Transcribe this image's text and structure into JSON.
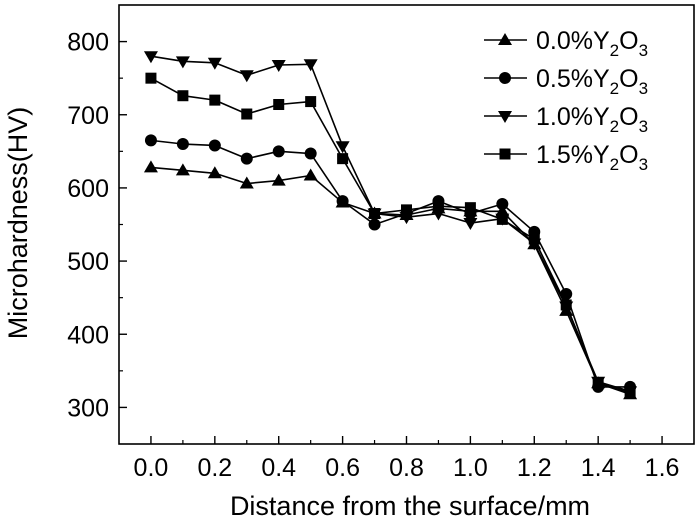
{
  "chart_data": {
    "type": "line",
    "xlabel": "Distance from the surface/mm",
    "ylabel": "Microhardness(HV)",
    "xlim": [
      -0.1,
      1.7
    ],
    "ylim": [
      250,
      850
    ],
    "xticks": [
      0.0,
      0.2,
      0.4,
      0.6,
      0.8,
      1.0,
      1.2,
      1.4,
      1.6
    ],
    "xtick_labels": [
      "0.0",
      "0.2",
      "0.4",
      "0.6",
      "0.8",
      "1.0",
      "1.2",
      "1.4",
      "1.6"
    ],
    "yticks": [
      300,
      400,
      500,
      600,
      700,
      800
    ],
    "ytick_labels": [
      "300",
      "400",
      "500",
      "600",
      "700",
      "800"
    ],
    "grid": false,
    "legend_position": "top-right",
    "x": [
      0.0,
      0.1,
      0.2,
      0.3,
      0.4,
      0.5,
      0.6,
      0.7,
      0.8,
      0.9,
      1.0,
      1.1,
      1.2,
      1.3,
      1.4,
      1.5
    ],
    "series": [
      {
        "name": "0.0%Y2O3",
        "legend": {
          "pre": "0.0%Y",
          "sub1": "2",
          "mid": "O",
          "sub2": "3"
        },
        "marker": "triangle-up",
        "values": [
          628,
          624,
          620,
          606,
          610,
          617,
          580,
          565,
          563,
          572,
          568,
          568,
          523,
          432,
          333,
          318
        ]
      },
      {
        "name": "0.5%Y2O3",
        "legend": {
          "pre": "0.5%Y",
          "sub1": "2",
          "mid": "O",
          "sub2": "3"
        },
        "marker": "circle",
        "values": [
          665,
          660,
          658,
          640,
          650,
          647,
          582,
          550,
          565,
          582,
          565,
          578,
          540,
          455,
          328,
          328
        ]
      },
      {
        "name": "1.0%Y2O3",
        "legend": {
          "pre": "1.0%Y",
          "sub1": "2",
          "mid": "O",
          "sub2": "3"
        },
        "marker": "triangle-down",
        "values": [
          780,
          773,
          771,
          754,
          768,
          769,
          657,
          565,
          560,
          565,
          552,
          558,
          524,
          438,
          335,
          322
        ]
      },
      {
        "name": "1.5%Y2O3",
        "legend": {
          "pre": "1.5%Y",
          "sub1": "2",
          "mid": "O",
          "sub2": "3"
        },
        "marker": "square",
        "values": [
          750,
          726,
          720,
          701,
          714,
          718,
          640,
          565,
          570,
          575,
          573,
          557,
          530,
          440,
          333,
          320
        ]
      }
    ]
  }
}
